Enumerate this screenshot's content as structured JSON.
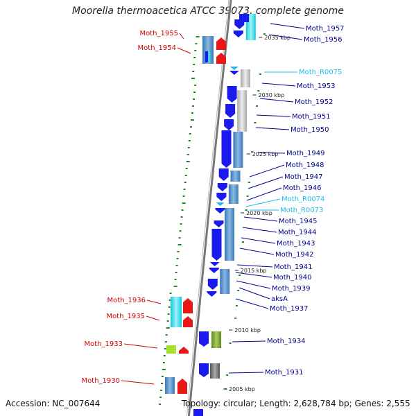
{
  "title": "Moorella thermoacetica ATCC 39073, complete genome",
  "footer": {
    "accession": "Accession: NC_007644",
    "topology": "Topology: circular; Length: 2,628,784 bp; Genes: 2,555"
  },
  "colors": {
    "cds_blue": "#1a1aee",
    "rna_cyan": "#33dddd",
    "red_gene": "#e81818",
    "forward_label": "#00008b",
    "reverse_label": "#cc0000",
    "rna_label": "#22bbee",
    "ring_gray": "#777777",
    "gc_green": "#1a8a1a"
  },
  "ticks": [
    "2035 kbp",
    "2030 kbp",
    "2025 kbp",
    "2020 kbp",
    "2015 kbp",
    "2010 kbp",
    "2005 kbp"
  ],
  "right_labels": [
    {
      "text": "Moth_1957",
      "kind": "forward"
    },
    {
      "text": "Moth_1956",
      "kind": "forward"
    },
    {
      "text": "Moth_R0075",
      "kind": "rna"
    },
    {
      "text": "Moth_1953",
      "kind": "forward"
    },
    {
      "text": "Moth_1952",
      "kind": "forward"
    },
    {
      "text": "Moth_1951",
      "kind": "forward"
    },
    {
      "text": "Moth_1950",
      "kind": "forward"
    },
    {
      "text": "Moth_1949",
      "kind": "forward"
    },
    {
      "text": "Moth_1948",
      "kind": "forward"
    },
    {
      "text": "Moth_1947",
      "kind": "forward"
    },
    {
      "text": "Moth_1946",
      "kind": "forward"
    },
    {
      "text": "Moth_R0074",
      "kind": "rna"
    },
    {
      "text": "Moth_R0073",
      "kind": "rna"
    },
    {
      "text": "Moth_1945",
      "kind": "forward"
    },
    {
      "text": "Moth_1944",
      "kind": "forward"
    },
    {
      "text": "Moth_1943",
      "kind": "forward"
    },
    {
      "text": "Moth_1942",
      "kind": "forward"
    },
    {
      "text": "Moth_1941",
      "kind": "forward"
    },
    {
      "text": "Moth_1940",
      "kind": "forward"
    },
    {
      "text": "Moth_1939",
      "kind": "forward"
    },
    {
      "text": "aksA",
      "kind": "forward"
    },
    {
      "text": "Moth_1937",
      "kind": "forward"
    },
    {
      "text": "Moth_1934",
      "kind": "forward"
    },
    {
      "text": "Moth_1931",
      "kind": "forward"
    }
  ],
  "left_labels": [
    {
      "text": "Moth_1955",
      "kind": "reverse"
    },
    {
      "text": "Moth_1954",
      "kind": "reverse"
    },
    {
      "text": "Moth_1936",
      "kind": "reverse"
    },
    {
      "text": "Moth_1935",
      "kind": "reverse"
    },
    {
      "text": "Moth_1933",
      "kind": "reverse"
    },
    {
      "text": "Moth_1930",
      "kind": "reverse"
    }
  ]
}
